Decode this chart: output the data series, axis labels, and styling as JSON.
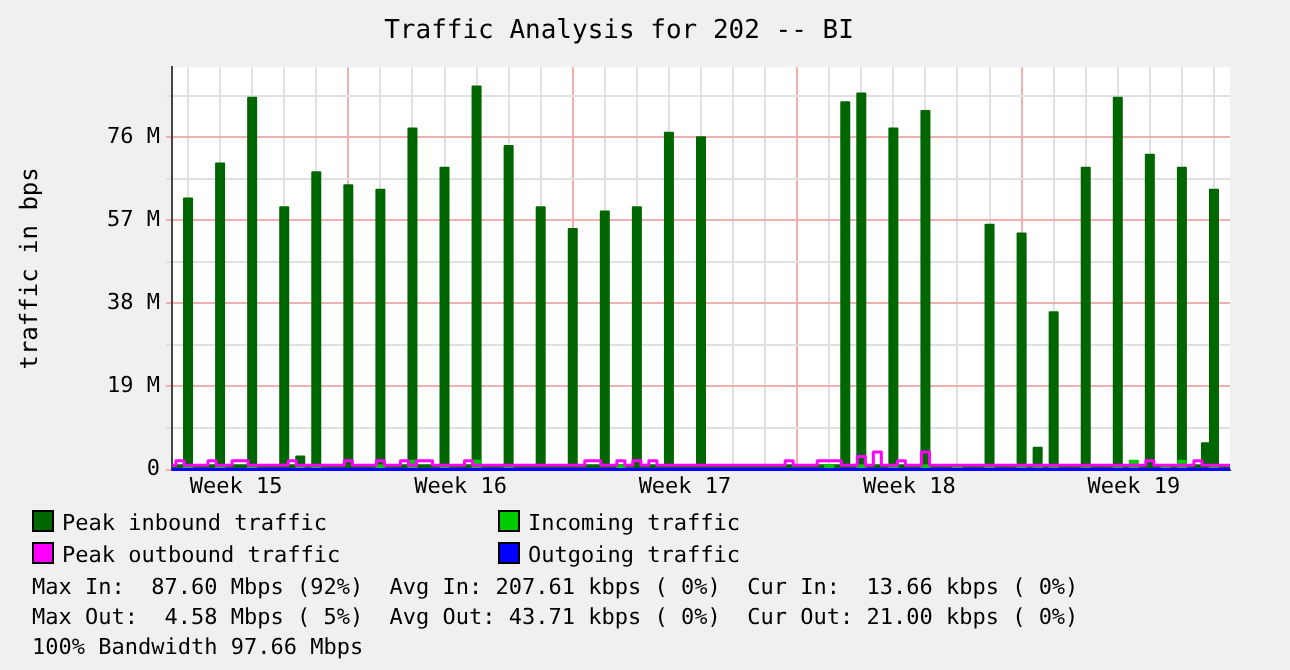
{
  "chart_data": {
    "type": "step",
    "title": "Traffic Analysis for 202 -- BI",
    "ylabel": "traffic in bps",
    "categories": [
      null,
      null,
      null,
      null,
      null,
      null,
      null,
      null,
      "Week 15",
      null,
      null,
      null,
      null,
      null,
      null,
      null,
      null,
      null,
      null,
      null,
      null,
      null,
      null,
      null,
      null,
      null,
      null,
      null,
      null,
      null,
      null,
      null,
      null,
      null,
      null,
      null,
      "Week 16",
      null,
      null,
      null,
      null,
      null,
      null,
      null,
      null,
      null,
      null,
      null,
      null,
      null,
      null,
      null,
      null,
      null,
      null,
      null,
      null,
      null,
      null,
      null,
      null,
      null,
      null,
      null,
      "Week 17",
      null,
      null,
      null,
      null,
      null,
      null,
      null,
      null,
      null,
      null,
      null,
      null,
      null,
      null,
      null,
      null,
      null,
      null,
      null,
      null,
      null,
      null,
      null,
      null,
      null,
      null,
      null,
      "Week 18",
      null,
      null,
      null,
      null,
      null,
      null,
      null,
      null,
      null,
      null,
      null,
      null,
      null,
      null,
      null,
      null,
      null,
      null,
      null,
      null,
      null,
      null,
      null,
      null,
      null,
      null,
      null,
      "Week 19",
      null,
      null,
      null,
      null,
      null,
      null,
      null,
      null,
      null,
      null,
      null,
      null
    ],
    "ylim": [
      0,
      92
    ],
    "yticks": [
      0,
      {
        "value": 9.5,
        "label": null
      },
      {
        "value": 19,
        "label": "19 M"
      },
      {
        "value": 28.5,
        "label": null
      },
      {
        "value": 38,
        "label": "38 M"
      },
      {
        "value": 47.5,
        "label": null
      },
      {
        "value": 57,
        "label": "57 M"
      },
      {
        "value": 66.5,
        "label": null
      },
      {
        "value": 76,
        "label": "76 M"
      },
      {
        "value": 85.5,
        "label": null
      }
    ],
    "grid": true,
    "legend": "bottom",
    "series": [
      {
        "name": "Peak inbound traffic",
        "type": "area",
        "color": "#006600",
        "values": [
          1,
          1,
          62,
          1,
          1,
          1,
          70,
          1,
          1,
          1,
          85,
          1,
          1,
          1,
          60,
          1,
          3,
          1,
          68,
          1,
          1,
          1,
          65,
          1,
          1,
          1,
          64,
          1,
          1,
          1,
          78,
          1,
          1,
          1,
          69,
          1,
          1,
          1,
          87.6,
          1,
          1,
          1,
          74,
          1,
          1,
          1,
          60,
          1,
          1,
          1,
          55,
          1,
          1,
          1,
          59,
          1,
          1,
          1,
          60,
          1,
          1,
          1,
          77,
          1,
          1,
          1,
          76,
          1,
          1,
          1,
          1,
          1,
          1,
          1,
          1,
          1,
          1,
          1,
          1,
          1,
          1,
          1,
          1,
          1,
          84,
          1,
          86,
          1,
          1,
          1,
          78,
          1,
          1,
          1,
          82,
          1,
          1,
          1,
          1,
          1,
          1,
          1,
          56,
          1,
          1,
          1,
          54,
          1,
          5,
          1,
          36,
          1,
          1,
          1,
          69,
          1,
          1,
          1,
          85,
          1,
          1,
          1,
          72,
          1,
          1,
          1,
          69,
          1,
          1,
          6,
          64,
          1,
          1
        ]
      },
      {
        "name": "Incoming traffic",
        "type": "area",
        "color": "#00cc00",
        "values": [
          0,
          0,
          1,
          0,
          0,
          0,
          1,
          0,
          0,
          0,
          1,
          0,
          0,
          0,
          0,
          0,
          1,
          0,
          1,
          0,
          0,
          0,
          0,
          0,
          0,
          0,
          1,
          0,
          0,
          0,
          2,
          0,
          0,
          0,
          1,
          0,
          0,
          0,
          2,
          0,
          0,
          0,
          1,
          0,
          0,
          0,
          0,
          0,
          0,
          0,
          0,
          0,
          0,
          0,
          0,
          0,
          1,
          0,
          0,
          0,
          0,
          0,
          0,
          0,
          0,
          0,
          0,
          0,
          0,
          0,
          0,
          0,
          0,
          0,
          0,
          0,
          0,
          0,
          0,
          0,
          0,
          0,
          1,
          0,
          0,
          0,
          1,
          0,
          0,
          0,
          1,
          0,
          0,
          0,
          1,
          0,
          0,
          0,
          1,
          0,
          0,
          0,
          1,
          0,
          0,
          0,
          1,
          0,
          1,
          0,
          1,
          0,
          0,
          0,
          1,
          0,
          0,
          0,
          1,
          0,
          2,
          0,
          0,
          0,
          1,
          0,
          2,
          0,
          0,
          0,
          1,
          0,
          0
        ]
      },
      {
        "name": "Peak outbound traffic",
        "type": "step",
        "color": "#ff00ff",
        "values": [
          1,
          2,
          1,
          1,
          1,
          2,
          1,
          1,
          2,
          2,
          1,
          1,
          1,
          1,
          1,
          2,
          1,
          1,
          1,
          1,
          1,
          1,
          2,
          1,
          1,
          1,
          2,
          1,
          1,
          2,
          1,
          2,
          2,
          1,
          1,
          1,
          1,
          2,
          1,
          1,
          1,
          1,
          1,
          1,
          1,
          1,
          1,
          1,
          1,
          1,
          1,
          1,
          2,
          2,
          1,
          1,
          2,
          1,
          2,
          1,
          2,
          1,
          1,
          1,
          1,
          1,
          1,
          1,
          1,
          1,
          1,
          1,
          1,
          1,
          1,
          1,
          1,
          2,
          1,
          1,
          1,
          2,
          2,
          2,
          1,
          1,
          3,
          1,
          4,
          1,
          1,
          2,
          1,
          1,
          4,
          1,
          1,
          1,
          1,
          1,
          1,
          1,
          1,
          1,
          1,
          1,
          1,
          1,
          1,
          1,
          1,
          1,
          1,
          1,
          1,
          1,
          1,
          1,
          1,
          1,
          1,
          1,
          2,
          1,
          1,
          1,
          1,
          1,
          2,
          1,
          1,
          1,
          1
        ]
      },
      {
        "name": "Outgoing traffic",
        "type": "step",
        "color": "#0000ff",
        "values": [
          0,
          0,
          0,
          0,
          0,
          0,
          0,
          0,
          0,
          0,
          0,
          0,
          0,
          0,
          0,
          0,
          0,
          0,
          0,
          0,
          0,
          0,
          0,
          0,
          0,
          0,
          0,
          0,
          0,
          0,
          0,
          0,
          0,
          0,
          0,
          0,
          0,
          0,
          0,
          0,
          0,
          0,
          0,
          0,
          0,
          0,
          0,
          0,
          0,
          0,
          0,
          0,
          0,
          0,
          0,
          0,
          0,
          0,
          0,
          0,
          0,
          0,
          0,
          0,
          0,
          0,
          0,
          0,
          0,
          0,
          0,
          0,
          0,
          0,
          0,
          0,
          0,
          0,
          0,
          0,
          0,
          0,
          0,
          0,
          0,
          0,
          0,
          0,
          0,
          0,
          0,
          0,
          0,
          0,
          0,
          0,
          0,
          0,
          0,
          0,
          0,
          0,
          0,
          0,
          0,
          0,
          0,
          0,
          0,
          0,
          0,
          0,
          0,
          0,
          0,
          0,
          0,
          0,
          0,
          0,
          0,
          0,
          0,
          0,
          0,
          0,
          0,
          0,
          0,
          0,
          0,
          0,
          0
        ]
      }
    ],
    "annotations": [
      "Max In:  87.60 Mbps (92%)  Avg In: 207.61 kbps ( 0%)  Cur In:  13.66 kbps ( 0%)",
      "Max Out:  4.58 Mbps ( 5%)  Avg Out: 43.71 kbps ( 0%)  Cur Out: 21.00 kbps ( 0%)",
      "100% Bandwidth 97.66 Mbps"
    ]
  }
}
